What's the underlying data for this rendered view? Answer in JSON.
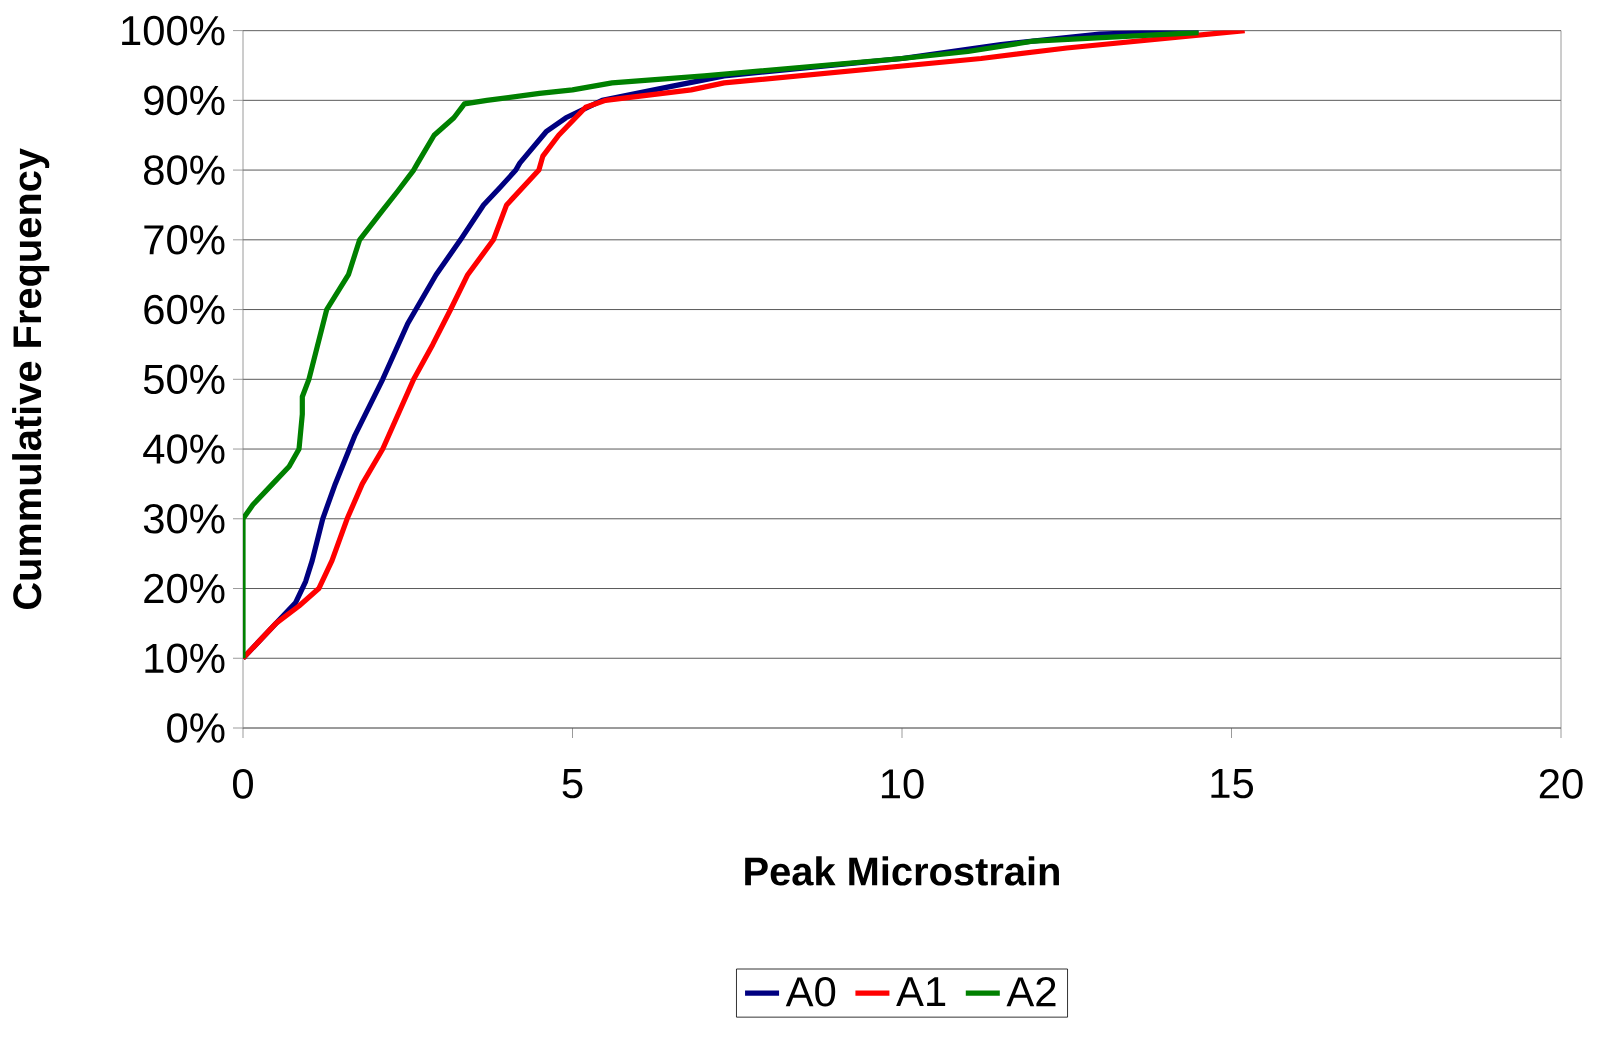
{
  "chart_data": {
    "type": "line",
    "xlabel": "Peak Microstrain",
    "ylabel": "Cummulative Frequency",
    "xlim": [
      0,
      20
    ],
    "ylim": [
      0,
      100
    ],
    "xticks": [
      0,
      5,
      10,
      15,
      20
    ],
    "yticks": [
      {
        "value": 0,
        "label": "0%"
      },
      {
        "value": 10,
        "label": "10%"
      },
      {
        "value": 20,
        "label": "20%"
      },
      {
        "value": 30,
        "label": "30%"
      },
      {
        "value": 40,
        "label": "40%"
      },
      {
        "value": 50,
        "label": "50%"
      },
      {
        "value": 60,
        "label": "60%"
      },
      {
        "value": 70,
        "label": "70%"
      },
      {
        "value": 80,
        "label": "80%"
      },
      {
        "value": 90,
        "label": "90%"
      },
      {
        "value": 100,
        "label": "100%"
      }
    ],
    "grid": "y",
    "legend": "bottom",
    "line_style": "solid",
    "series": [
      {
        "name": "A0",
        "color": "#000080",
        "x": [
          0,
          0.8,
          0.95,
          1.05,
          1.21,
          1.4,
          1.7,
          2.12,
          2.5,
          2.93,
          3.3,
          3.65,
          3.9,
          4.14,
          4.2,
          4.6,
          4.9,
          5.45,
          6.5,
          7.3,
          10,
          11.5,
          13,
          14.5
        ],
        "values": [
          10,
          18,
          21,
          24,
          30,
          35,
          42,
          50,
          58,
          65,
          70,
          75,
          77.5,
          80,
          81,
          85.5,
          87.5,
          90,
          92,
          93.5,
          96,
          98,
          99.5,
          100
        ]
      },
      {
        "name": "A1",
        "color": "#ff0000",
        "x": [
          0,
          0.5,
          0.85,
          1.15,
          1.35,
          1.58,
          1.81,
          2.12,
          2.59,
          2.88,
          3.15,
          3.41,
          3.8,
          4.0,
          4.49,
          4.55,
          4.79,
          5.2,
          5.5,
          6.8,
          7.3,
          11.2,
          12.5,
          15.2
        ],
        "values": [
          10,
          15,
          17.5,
          20,
          24,
          30,
          35,
          40,
          50,
          55,
          60,
          65,
          70,
          75,
          80,
          82,
          85,
          89,
          90,
          91.5,
          92.5,
          96,
          97.5,
          100
        ]
      },
      {
        "name": "A2",
        "color": "#008000",
        "x": [
          0,
          0,
          0.15,
          0.45,
          0.7,
          0.85,
          0.9,
          0.9,
          1,
          1.27,
          1.6,
          1.77,
          2.1,
          2.35,
          2.59,
          2.65,
          2.9,
          3.2,
          3.36,
          3.7,
          4.5,
          5,
          5.6,
          7,
          10,
          11,
          12,
          14.5
        ],
        "values": [
          10,
          30,
          32,
          35,
          37.5,
          40,
          45,
          47.5,
          50,
          60,
          65,
          70,
          74,
          77,
          80,
          81,
          85,
          87.5,
          89.5,
          90,
          91,
          91.5,
          92.5,
          93.5,
          96,
          97,
          98.5,
          99.7
        ]
      }
    ]
  }
}
